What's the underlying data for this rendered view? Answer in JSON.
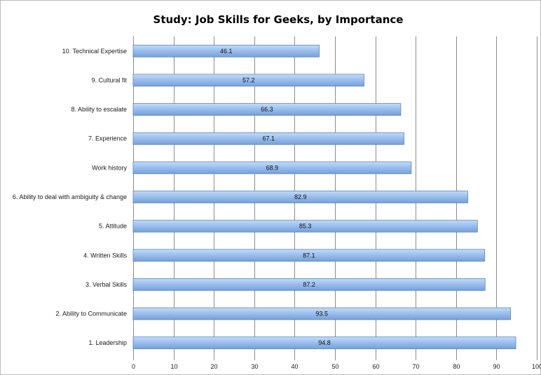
{
  "chart_data": {
    "type": "bar",
    "orientation": "horizontal",
    "title": "Study: Job Skills for Geeks, by Importance",
    "xlabel": "",
    "ylabel": "",
    "xlim": [
      0,
      100
    ],
    "x_ticks": [
      "0",
      "10",
      "20",
      "30",
      "40",
      "50",
      "60",
      "70",
      "80",
      "90",
      "100"
    ],
    "grid": true,
    "legend": "none",
    "bar_color": "#8fb4e8",
    "categories": [
      "10. Technical Expertise",
      "9. Cultural fit",
      "8. Ability to escalate",
      "7. Experience",
      "Work history",
      "6. Ability to deal with ambiguity & change",
      "5. Attitude",
      "4. Written Skills",
      "3. Verbal Skills",
      "2. Ability to Communicate",
      "1. Leadership"
    ],
    "values": [
      46.1,
      57.2,
      66.3,
      67.1,
      68.9,
      82.9,
      85.3,
      87.1,
      87.2,
      93.5,
      94.8
    ],
    "value_labels": [
      "46.1",
      "57.2",
      "66.3",
      "67.1",
      "68.9",
      "82.9",
      "85.3",
      "87.1",
      "87.2",
      "93.5",
      "94.8"
    ]
  }
}
